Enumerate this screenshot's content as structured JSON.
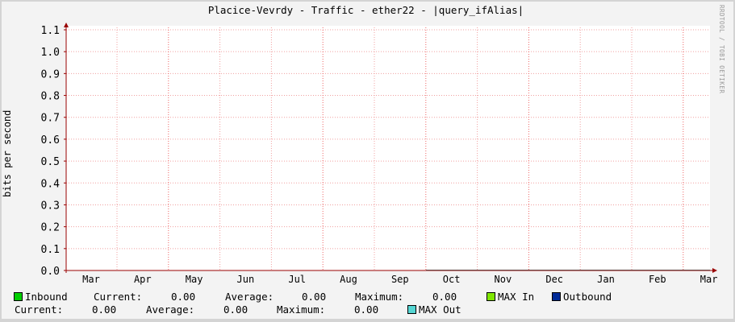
{
  "chart_data": {
    "type": "area",
    "title": "Placice-Vevrdy - Traffic - ether22 - |query_ifAlias|",
    "ylabel": "bits per second",
    "xlabel": "",
    "ylim": [
      0,
      1.1
    ],
    "yticks": [
      "0.0",
      "0.1",
      "0.2",
      "0.3",
      "0.4",
      "0.5",
      "0.6",
      "0.7",
      "0.8",
      "0.9",
      "1.0",
      "1.1"
    ],
    "categories": [
      "Mar",
      "Apr",
      "May",
      "Jun",
      "Jul",
      "Aug",
      "Sep",
      "Oct",
      "Nov",
      "Dec",
      "Jan",
      "Feb",
      "Mar"
    ],
    "grid": true,
    "series": [
      {
        "name": "Inbound",
        "color": "#00cf00",
        "values": [
          0,
          0,
          0,
          0,
          0,
          0,
          0,
          0,
          0,
          0,
          0,
          0,
          0
        ]
      },
      {
        "name": "MAX In",
        "color": "#7fe600",
        "values": [
          0,
          0,
          0,
          0,
          0,
          0,
          0,
          0,
          0,
          0,
          0,
          0,
          0
        ]
      },
      {
        "name": "Outbound",
        "color": "#002a97",
        "values": [
          0,
          0,
          0,
          0,
          0,
          0,
          0,
          0,
          0,
          0,
          0,
          0,
          0
        ]
      },
      {
        "name": "MAX Out",
        "color": "#55d6d3",
        "values": [
          0,
          0,
          0,
          0,
          0,
          0,
          0,
          0,
          0,
          0,
          0,
          0,
          0
        ]
      }
    ]
  },
  "watermark": "RRDTOOL / TOBI OETIKER",
  "legend": {
    "inbound": "Inbound",
    "max_in": "MAX In",
    "outbound": "Outbound",
    "max_out": "MAX Out",
    "in_current_label": "Current:",
    "in_current": "0.00",
    "in_average_label": "Average:",
    "in_average": "0.00",
    "in_maximum_label": "Maximum:",
    "in_maximum": "0.00",
    "out_current_label": "Current:",
    "out_current": "0.00",
    "out_average_label": "Average:",
    "out_average": "0.00",
    "out_maximum_label": "Maximum:",
    "out_maximum": "0.00"
  }
}
